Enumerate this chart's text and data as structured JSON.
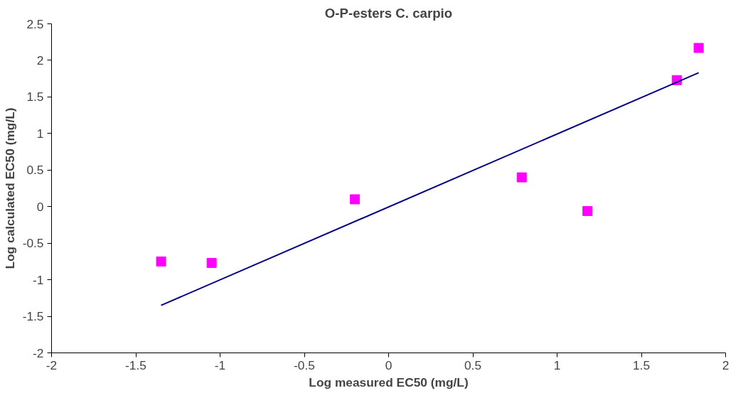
{
  "chart_data": {
    "type": "scatter",
    "title": "O-P-esters C. carpio",
    "xlabel": "Log measured EC50 (mg/L)",
    "ylabel": "Log calculated EC50 (mg/L)",
    "xlim": [
      -2,
      2
    ],
    "ylim": [
      -2,
      2.5
    ],
    "xticks": [
      -2,
      -1.5,
      -1,
      -0.5,
      0,
      0.5,
      1,
      1.5,
      2
    ],
    "yticks": [
      -2,
      -1.5,
      -1,
      -0.5,
      0,
      0.5,
      1,
      1.5,
      2,
      2.5
    ],
    "grid": false,
    "series": [
      {
        "marker": "square",
        "color": "#ff00ff",
        "x": [
          -1.35,
          -1.05,
          -0.2,
          0.79,
          1.18,
          1.71,
          1.84
        ],
        "values": [
          -0.75,
          -0.77,
          0.1,
          0.4,
          -0.06,
          1.73,
          2.17
        ]
      },
      {
        "type": "line",
        "color": "#000080",
        "x": [
          -1.35,
          1.84
        ],
        "values": [
          -1.35,
          1.83
        ]
      }
    ]
  }
}
